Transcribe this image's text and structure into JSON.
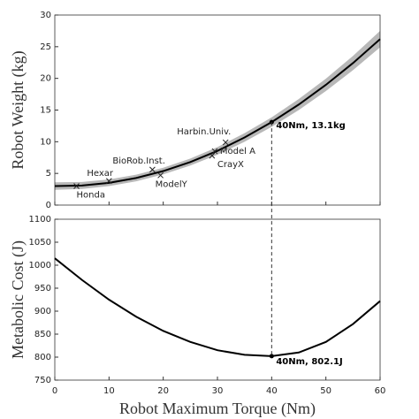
{
  "chart_data": [
    {
      "type": "line",
      "ylabel": "Robot Weight (kg)",
      "x": [
        0,
        5,
        10,
        15,
        20,
        25,
        30,
        35,
        40,
        45,
        50,
        55,
        60
      ],
      "series": [
        {
          "color": "#000000",
          "values": [
            3.0,
            3.09,
            3.51,
            4.27,
            5.37,
            6.8,
            8.56,
            10.67,
            13.1,
            15.87,
            18.98,
            22.42,
            26.2
          ]
        }
      ],
      "band": {
        "color": "#b8b8b8",
        "lower": [
          2.4,
          2.55,
          3.0,
          3.75,
          4.85,
          6.25,
          7.95,
          10.0,
          12.35,
          15.0,
          18.0,
          21.3,
          24.9
        ],
        "upper": [
          3.6,
          3.65,
          4.05,
          4.8,
          5.9,
          7.35,
          9.15,
          11.35,
          13.85,
          16.75,
          19.95,
          23.55,
          27.5
        ]
      },
      "points": [
        {
          "label": "Honda",
          "x": 4,
          "y": 3.0
        },
        {
          "label": "Hexar",
          "x": 10,
          "y": 3.8
        },
        {
          "label": "BioRob.Inst.",
          "x": 18,
          "y": 5.6
        },
        {
          "label": "ModelY",
          "x": 19.5,
          "y": 4.7
        },
        {
          "label": "Harbin.Univ.",
          "x": 31.5,
          "y": 9.9
        },
        {
          "label": "Model A",
          "x": 29.5,
          "y": 8.5
        },
        {
          "label": "CrayX",
          "x": 29,
          "y": 7.8
        }
      ],
      "annotation": {
        "text": "40Nm, 13.1kg",
        "x": 40,
        "y": 13.1
      },
      "xlim": [
        0,
        60
      ],
      "xticks": [
        0,
        10,
        20,
        30,
        40,
        50,
        60
      ],
      "ylim": [
        0,
        30
      ],
      "yticks": [
        0,
        5,
        10,
        15,
        20,
        25,
        30
      ]
    },
    {
      "type": "line",
      "ylabel": "Metabolic Cost (J)",
      "xlabel": "Robot Maximum Torque (Nm)",
      "x": [
        0,
        5,
        10,
        15,
        20,
        25,
        30,
        35,
        40,
        45,
        50,
        55,
        60
      ],
      "series": [
        {
          "color": "#000000",
          "values": [
            1015,
            968,
            925,
            888,
            857,
            833,
            815,
            805,
            802.1,
            810,
            833,
            872,
            922
          ]
        }
      ],
      "annotation": {
        "text": "40Nm, 802.1J",
        "x": 40,
        "y": 802.1
      },
      "xlim": [
        0,
        60
      ],
      "xticks": [
        0,
        10,
        20,
        30,
        40,
        50,
        60
      ],
      "ylim": [
        750,
        1100
      ],
      "yticks": [
        750,
        800,
        850,
        900,
        950,
        1000,
        1050,
        1100
      ]
    }
  ]
}
